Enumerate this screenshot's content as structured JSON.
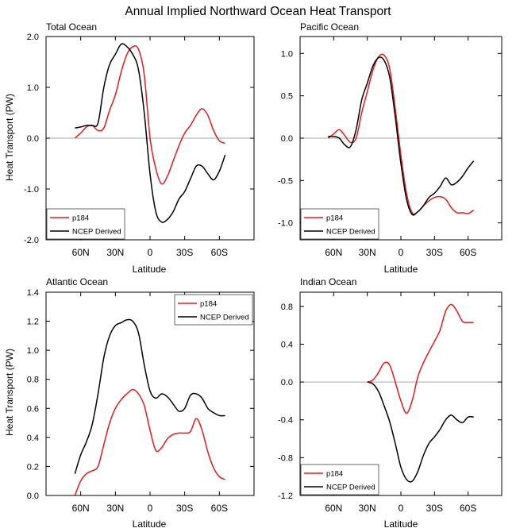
{
  "figure_title": "Annual Implied Northward Ocean Heat Transport",
  "colors": {
    "series1": "#e8191c",
    "series2": "#000000",
    "zero_line": "#a8a8a8",
    "frame": "#000000"
  },
  "x_tick_values": [
    60,
    30,
    0,
    -30,
    -60
  ],
  "x_tick_labels": [
    "60N",
    "30N",
    "0",
    "30S",
    "60S"
  ],
  "chart_data": [
    {
      "type": "line",
      "title": "Total Ocean",
      "xlabel": "Latitude",
      "ylabel": "Heat Transport (PW)",
      "xlim": [
        90,
        -90
      ],
      "ylim": [
        -2.0,
        2.0
      ],
      "y_ticks": [
        2.0,
        1.0,
        0.0,
        -1.0,
        -2.0
      ],
      "y_tick_labels": [
        "2.0",
        "1.0",
        "0.0",
        "-1.0",
        "-2.0"
      ],
      "legend_position": "bottom-left",
      "series": [
        {
          "name": "p184",
          "color": "#e8191c",
          "x": [
            65,
            60,
            55,
            50,
            45,
            40,
            35,
            30,
            25,
            20,
            15,
            10,
            5,
            0,
            -5,
            -10,
            -15,
            -20,
            -25,
            -30,
            -35,
            -40,
            -45,
            -50,
            -55,
            -60,
            -65
          ],
          "y": [
            0.0,
            0.1,
            0.22,
            0.25,
            0.15,
            0.2,
            0.55,
            0.85,
            1.3,
            1.65,
            1.8,
            1.75,
            1.25,
            0.0,
            -0.6,
            -0.9,
            -0.75,
            -0.45,
            -0.15,
            0.1,
            0.25,
            0.45,
            0.58,
            0.45,
            0.15,
            -0.05,
            -0.1
          ]
        },
        {
          "name": "NCEP Derived",
          "color": "#000000",
          "x": [
            65,
            60,
            55,
            50,
            45,
            40,
            35,
            30,
            25,
            20,
            15,
            10,
            5,
            0,
            -5,
            -10,
            -15,
            -20,
            -25,
            -30,
            -35,
            -40,
            -45,
            -50,
            -55,
            -60,
            -65
          ],
          "y": [
            0.2,
            0.22,
            0.25,
            0.25,
            0.3,
            1.0,
            1.45,
            1.65,
            1.85,
            1.8,
            1.65,
            1.35,
            0.5,
            -0.7,
            -1.45,
            -1.65,
            -1.6,
            -1.45,
            -1.2,
            -1.05,
            -0.8,
            -0.55,
            -0.55,
            -0.7,
            -0.82,
            -0.65,
            -0.33
          ]
        }
      ]
    },
    {
      "type": "line",
      "title": "Pacific Ocean",
      "xlabel": "Latitude",
      "ylabel": "",
      "xlim": [
        90,
        -90
      ],
      "ylim": [
        -1.2,
        1.2
      ],
      "y_ticks": [
        1.0,
        0.5,
        0.0,
        -0.5,
        -1.0
      ],
      "y_tick_labels": [
        "1.0",
        "0.5",
        "0.0",
        "-0.5",
        "-1.0"
      ],
      "legend_position": "bottom-left",
      "series": [
        {
          "name": "p184",
          "color": "#e8191c",
          "x": [
            65,
            60,
            55,
            50,
            45,
            40,
            35,
            30,
            25,
            20,
            15,
            10,
            5,
            0,
            -5,
            -10,
            -15,
            -20,
            -25,
            -30,
            -35,
            -40,
            -45,
            -50,
            -55,
            -60,
            -65
          ],
          "y": [
            0.0,
            0.05,
            0.1,
            0.03,
            -0.05,
            0.0,
            0.3,
            0.55,
            0.8,
            0.96,
            0.98,
            0.82,
            0.35,
            -0.2,
            -0.65,
            -0.88,
            -0.87,
            -0.8,
            -0.74,
            -0.7,
            -0.69,
            -0.72,
            -0.82,
            -0.88,
            -0.88,
            -0.89,
            -0.85
          ]
        },
        {
          "name": "NCEP Derived",
          "color": "#000000",
          "x": [
            65,
            60,
            55,
            50,
            45,
            40,
            35,
            30,
            25,
            20,
            15,
            10,
            5,
            0,
            -5,
            -10,
            -15,
            -20,
            -25,
            -30,
            -35,
            -40,
            -45,
            -50,
            -55,
            -60,
            -65
          ],
          "y": [
            0.02,
            0.02,
            0.0,
            -0.08,
            -0.1,
            0.1,
            0.45,
            0.65,
            0.85,
            0.95,
            0.92,
            0.72,
            0.25,
            -0.3,
            -0.72,
            -0.9,
            -0.87,
            -0.8,
            -0.7,
            -0.65,
            -0.57,
            -0.47,
            -0.55,
            -0.52,
            -0.45,
            -0.35,
            -0.27
          ]
        }
      ]
    },
    {
      "type": "line",
      "title": "Atlantic Ocean",
      "xlabel": "Latitude",
      "ylabel": "Heat Transport (PW)",
      "xlim": [
        90,
        -90
      ],
      "ylim": [
        0.0,
        1.4
      ],
      "y_ticks": [
        1.4,
        1.2,
        1.0,
        0.8,
        0.6,
        0.4,
        0.2,
        0.0
      ],
      "y_tick_labels": [
        "1.4",
        "1.2",
        "1.0",
        "0.8",
        "0.6",
        "0.4",
        "0.2",
        "0.0"
      ],
      "legend_position": "top-right",
      "series": [
        {
          "name": "p184",
          "color": "#e8191c",
          "x": [
            65,
            60,
            55,
            50,
            45,
            40,
            35,
            30,
            25,
            20,
            15,
            10,
            5,
            0,
            -5,
            -10,
            -15,
            -20,
            -25,
            -30,
            -35,
            -40,
            -45,
            -50,
            -55,
            -60,
            -65
          ],
          "y": [
            0.0,
            0.1,
            0.15,
            0.17,
            0.2,
            0.35,
            0.5,
            0.6,
            0.66,
            0.7,
            0.73,
            0.7,
            0.62,
            0.45,
            0.31,
            0.33,
            0.39,
            0.42,
            0.43,
            0.43,
            0.44,
            0.53,
            0.45,
            0.3,
            0.19,
            0.13,
            0.11
          ]
        },
        {
          "name": "NCEP Derived",
          "color": "#000000",
          "x": [
            65,
            60,
            55,
            50,
            45,
            40,
            35,
            30,
            25,
            20,
            15,
            10,
            5,
            0,
            -5,
            -10,
            -15,
            -20,
            -25,
            -30,
            -35,
            -40,
            -45,
            -50,
            -55,
            -60,
            -65
          ],
          "y": [
            0.15,
            0.28,
            0.37,
            0.49,
            0.7,
            0.95,
            1.1,
            1.17,
            1.19,
            1.21,
            1.2,
            1.12,
            0.9,
            0.72,
            0.67,
            0.7,
            0.68,
            0.63,
            0.58,
            0.6,
            0.69,
            0.7,
            0.67,
            0.6,
            0.57,
            0.55,
            0.55
          ]
        }
      ]
    },
    {
      "type": "line",
      "title": "Indian Ocean",
      "xlabel": "Latitude",
      "ylabel": "",
      "xlim": [
        90,
        -90
      ],
      "ylim": [
        -1.2,
        0.95
      ],
      "y_ticks": [
        0.8,
        0.4,
        0.0,
        -0.4,
        -0.8,
        -1.2
      ],
      "y_tick_labels": [
        "0.8",
        "0.4",
        "0.0",
        "-0.4",
        "-0.8",
        "-1.2"
      ],
      "legend_position": "bottom-left",
      "series": [
        {
          "name": "p184",
          "color": "#e8191c",
          "x": [
            30,
            25,
            20,
            15,
            10,
            5,
            0,
            -5,
            -10,
            -15,
            -20,
            -25,
            -30,
            -35,
            -40,
            -45,
            -50,
            -55,
            -60,
            -65
          ],
          "y": [
            0.0,
            0.02,
            0.1,
            0.2,
            0.18,
            0.0,
            -0.2,
            -0.33,
            -0.2,
            0.05,
            0.2,
            0.32,
            0.43,
            0.55,
            0.75,
            0.82,
            0.75,
            0.64,
            0.63,
            0.63
          ]
        },
        {
          "name": "NCEP Derived",
          "color": "#000000",
          "x": [
            30,
            25,
            20,
            15,
            10,
            5,
            0,
            -5,
            -10,
            -15,
            -20,
            -25,
            -30,
            -35,
            -40,
            -45,
            -50,
            -55,
            -60,
            -65
          ],
          "y": [
            0.0,
            -0.02,
            -0.1,
            -0.25,
            -0.42,
            -0.65,
            -0.9,
            -1.03,
            -1.05,
            -0.95,
            -0.78,
            -0.65,
            -0.58,
            -0.5,
            -0.4,
            -0.35,
            -0.4,
            -0.43,
            -0.37,
            -0.37
          ]
        }
      ]
    }
  ]
}
